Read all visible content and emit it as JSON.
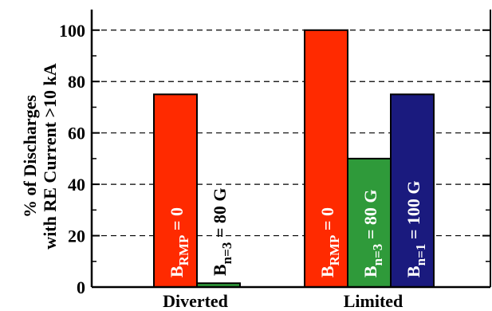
{
  "chart_data": {
    "type": "bar",
    "ylabel_line1": "% of Discharges",
    "ylabel_line2": "with RE Current >10 kA",
    "ylim": [
      0,
      108
    ],
    "yticks": [
      0,
      20,
      40,
      60,
      80,
      100
    ],
    "yticks_minor": [
      10,
      30,
      50,
      70,
      90
    ],
    "grid": "dashed horizontal at major ticks",
    "groups": [
      {
        "label": "Diverted",
        "bars": [
          {
            "label_base": "B",
            "label_sub": "RMP",
            "label_rest": " = 0",
            "value": 75,
            "color": "#ff2a00"
          },
          {
            "label_base": "B",
            "label_sub": "n=3",
            "label_rest": " = 80 G",
            "value": 1.5,
            "color": "#2f9a3a"
          }
        ]
      },
      {
        "label": "Limited",
        "bars": [
          {
            "label_base": "B",
            "label_sub": "RMP",
            "label_rest": " = 0",
            "value": 100,
            "color": "#ff2a00"
          },
          {
            "label_base": "B",
            "label_sub": "n=3",
            "label_rest": " = 80 G",
            "value": 50,
            "color": "#2f9a3a"
          },
          {
            "label_base": "B",
            "label_sub": "n=1",
            "label_rest": " = 100 G",
            "value": 75,
            "color": "#1a1a7e"
          }
        ]
      }
    ]
  }
}
